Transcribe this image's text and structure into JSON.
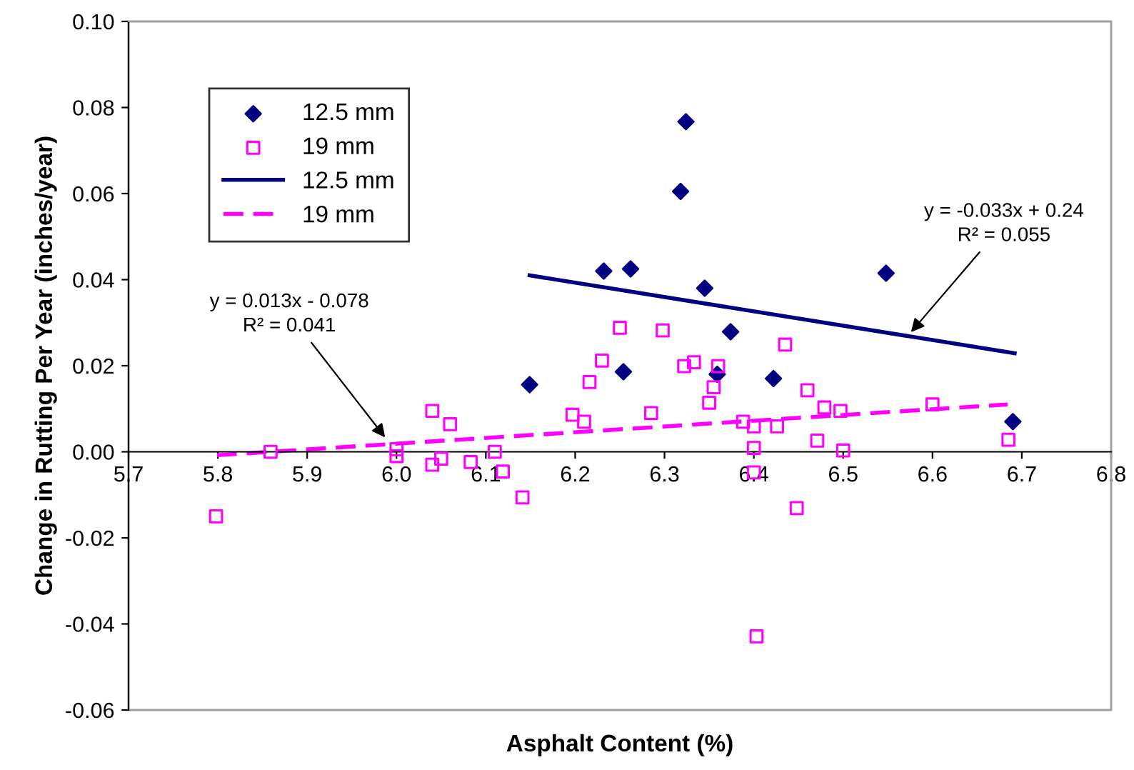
{
  "chart_data": {
    "type": "scatter",
    "xlabel": "Asphalt Content (%)",
    "ylabel": "Change in Rutting Per Year (inches/year)",
    "xlim": [
      5.7,
      6.8
    ],
    "xticks": [
      5.7,
      5.8,
      5.9,
      {
        "value": 6.0,
        "label": "6.0"
      },
      6.1,
      6.2,
      6.3,
      6.4,
      6.5,
      6.6,
      6.7,
      6.8
    ],
    "ylim": [
      -0.06,
      0.1
    ],
    "yticks": [
      -0.06,
      -0.04,
      -0.02,
      {
        "value": 0,
        "label": "0.00"
      },
      0.02,
      0.04,
      0.06,
      0.08,
      {
        "value": 0.1,
        "label": "0.10"
      }
    ],
    "grid": false,
    "legend": "top left",
    "series": [
      {
        "name": "12.5 mm",
        "marker": "diamond",
        "color": "#000080",
        "x": [
          6.149,
          6.232,
          6.262,
          6.254,
          6.318,
          6.324,
          6.345,
          6.374,
          6.359,
          6.422,
          6.548,
          6.69
        ],
        "values": [
          0.0156,
          0.042,
          0.0425,
          0.0186,
          0.0605,
          0.0767,
          0.038,
          0.0279,
          0.018,
          0.017,
          0.0415,
          0.007
        ]
      },
      {
        "name": "19 mm",
        "marker": "square",
        "color": "#ff00ff",
        "x": [
          5.798,
          5.859,
          6.0,
          6.0,
          6.04,
          6.06,
          6.04,
          6.05,
          6.083,
          6.11,
          6.119,
          6.141,
          6.197,
          6.21,
          6.216,
          6.23,
          6.25,
          6.298,
          6.322,
          6.333,
          6.36,
          6.355,
          6.35,
          6.285,
          6.435,
          6.46,
          6.479,
          6.497,
          6.388,
          6.4,
          6.426,
          6.4,
          6.471,
          6.5,
          6.6,
          6.685,
          6.4,
          6.448,
          6.403
        ],
        "values": [
          -0.015,
          0.0,
          0.0006,
          -0.001,
          0.0095,
          0.0064,
          -0.003,
          -0.0016,
          -0.0024,
          0.0,
          -0.0046,
          -0.0106,
          0.0086,
          0.007,
          0.0162,
          0.0212,
          0.0288,
          0.0282,
          0.0199,
          0.0208,
          0.0199,
          0.015,
          0.0114,
          0.009,
          0.0249,
          0.0143,
          0.0103,
          0.0095,
          0.007,
          0.0059,
          0.0059,
          0.0009,
          0.0026,
          0.0003,
          0.011,
          0.0028,
          -0.0048,
          -0.0131,
          -0.0429
        ]
      },
      {
        "name": "12.5 mm",
        "type": "line",
        "line_style": "solid",
        "marker": "none",
        "color": "#000080",
        "x": [
          6.149,
          6.692
        ],
        "values": [
          0.041,
          0.0229
        ]
      },
      {
        "name": "19 mm",
        "type": "line",
        "line_style": "dashed",
        "marker": "none",
        "color": "#ff00ff",
        "x": [
          5.799,
          6.684
        ],
        "values": [
          -0.0008,
          0.011
        ]
      }
    ],
    "annotations": [
      {
        "text": "y = 0.013x - 0.078\nR² = 0.041",
        "x": 5.99,
        "y": 0.0026
      },
      {
        "text": "y = -0.033x + 0.24\nR² = 0.055",
        "x": 6.573,
        "y": 0.0271
      }
    ]
  }
}
